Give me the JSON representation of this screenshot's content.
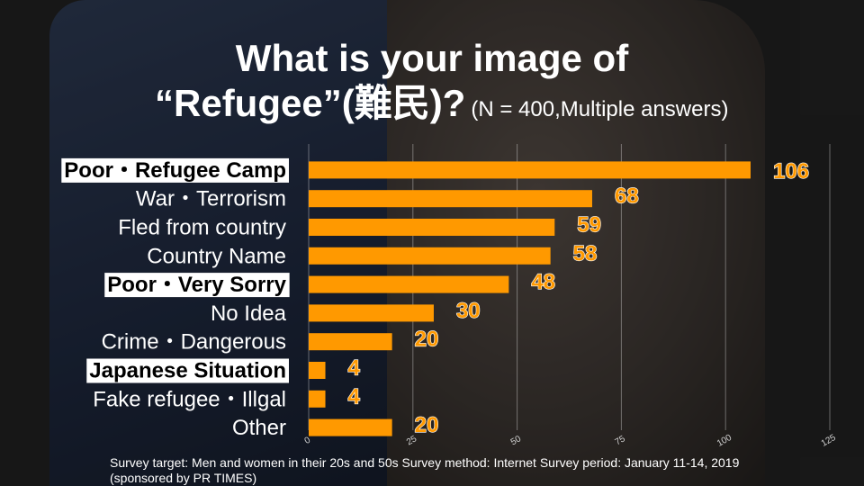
{
  "title_line1": "What is your image of",
  "title_line2": "“Refugee”(難民)?",
  "subtitle": "(N = 400,Multiple answers)",
  "footnote": "Survey target: Men and women in their 20s and 50s Survey method: Internet Survey period: January 11-14, 2019 (sponsored by PR TIMES)",
  "bar_color": "#FF9900",
  "highlight_bg": "#ffffff",
  "chart_data": {
    "type": "bar",
    "orientation": "horizontal",
    "categories": [
      "Poor・Refugee Camp",
      "War・Terrorism",
      "Fled from country",
      "Country Name",
      "Poor・Very Sorry",
      "No Idea",
      "Crime・Dangerous",
      "Japanese Situation",
      "Fake refugee・Illgal",
      "Other"
    ],
    "values": [
      106,
      68,
      59,
      58,
      48,
      30,
      20,
      4,
      4,
      20
    ],
    "highlighted": [
      true,
      false,
      false,
      false,
      true,
      false,
      false,
      true,
      false,
      false
    ],
    "xticks": [
      "0",
      "25",
      "50",
      "75",
      "100",
      "125"
    ],
    "xlim": [
      0,
      125
    ],
    "grid": true
  }
}
